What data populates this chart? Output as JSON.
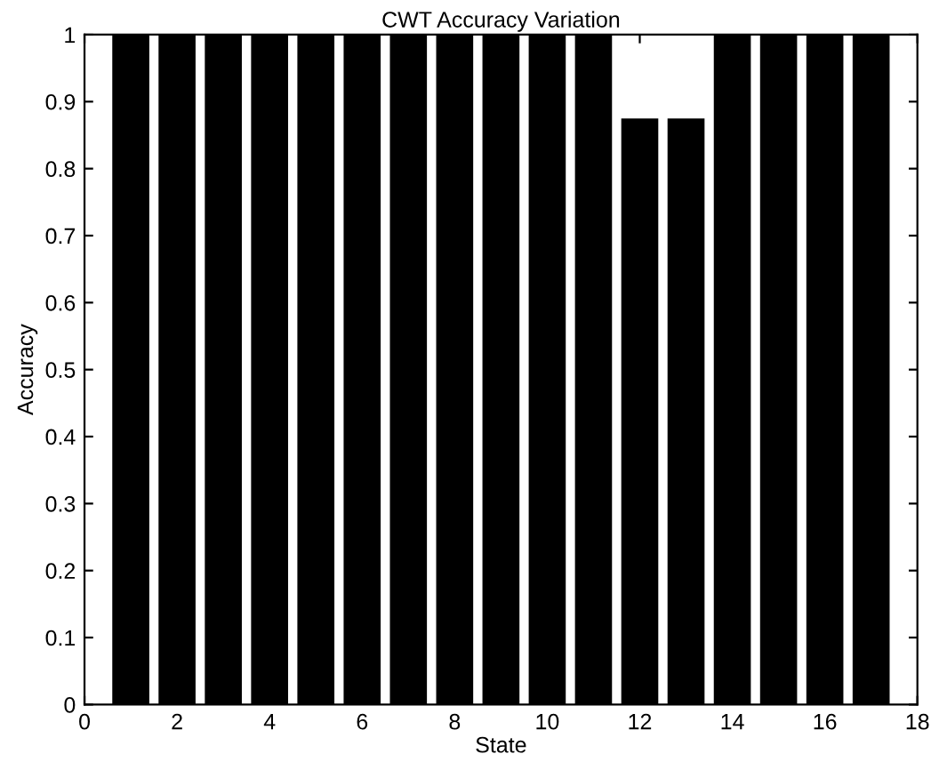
{
  "chart_data": {
    "type": "bar",
    "title": "CWT Accuracy Variation",
    "xlabel": "State",
    "ylabel": "Accuracy",
    "x": [
      1,
      2,
      3,
      4,
      5,
      6,
      7,
      8,
      9,
      10,
      11,
      12,
      13,
      14,
      15,
      16,
      17
    ],
    "values": [
      1,
      1,
      1,
      1,
      1,
      1,
      1,
      1,
      1,
      1,
      1,
      0.875,
      0.875,
      1,
      1,
      1,
      1
    ],
    "color": "#000000",
    "xlim": [
      0,
      18
    ],
    "xticks": [
      0,
      2,
      4,
      6,
      8,
      10,
      12,
      14,
      16,
      18
    ],
    "ylim": [
      0,
      1
    ],
    "yticks": [
      0,
      0.1,
      0.2,
      0.3,
      0.4,
      0.5,
      0.6,
      0.7,
      0.8,
      0.9,
      1
    ],
    "grid": false,
    "legend": false
  }
}
